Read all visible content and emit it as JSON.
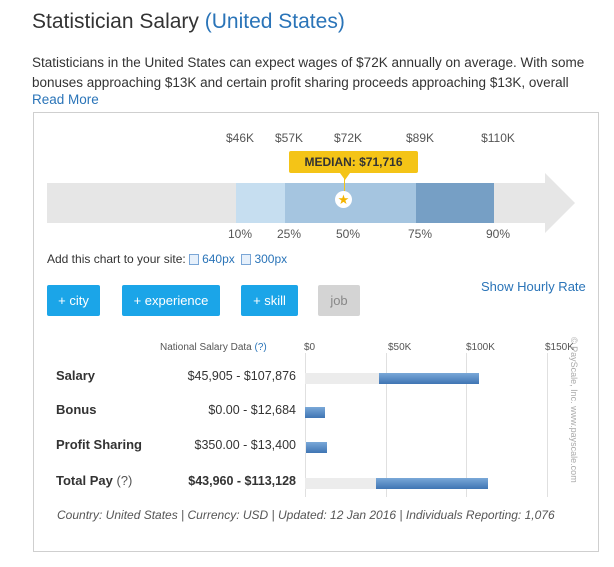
{
  "header": {
    "title": "Statistician Salary",
    "location": "(United States)"
  },
  "description": "Statisticians in the United States can expect wages of $72K annually on average. With some bonuses approaching $13K and certain profit sharing proceeds approaching $13K, overall",
  "read_more": "Read More",
  "chart_data": {
    "type": "bar",
    "title": "Statistician Salary (United States)",
    "percentiles": [
      "10%",
      "25%",
      "50%",
      "75%",
      "90%"
    ],
    "salaries": [
      "$46K",
      "$57K",
      "$72K",
      "$89K",
      "$110K"
    ],
    "values_k": [
      46,
      57,
      72,
      89,
      110
    ],
    "median_label": "MEDIAN: $71,716",
    "median_value": 71716
  },
  "embed": {
    "label": "Add this chart to your site:",
    "option1": "640px",
    "option2": "300px"
  },
  "show_hourly": "Show Hourly Rate",
  "filters": {
    "city": "+ city",
    "experience": "+ experience",
    "skill": "+ skill",
    "job": "job"
  },
  "table": {
    "header": "National Salary Data",
    "help": "(?)",
    "axis": [
      "$0",
      "$50K",
      "$100K",
      "$150K"
    ],
    "axis_max": 150000,
    "rows": [
      {
        "label": "Salary",
        "help": "",
        "range": "$45,905 - $107,876",
        "min": 45905,
        "max": 107876
      },
      {
        "label": "Bonus",
        "help": "",
        "range": "$0.00 - $12,684",
        "min": 0,
        "max": 12684
      },
      {
        "label": "Profit Sharing",
        "help": "",
        "range": "$350.00 - $13,400",
        "min": 350,
        "max": 13400
      },
      {
        "label": "Total Pay",
        "help": "(?)",
        "range": "$43,960 - $113,128",
        "min": 43960,
        "max": 113128
      }
    ]
  },
  "footer": "Country: United States | Currency: USD | Updated: 12 Jan 2016 | Individuals Reporting: 1,076",
  "watermark": "© PayScale, Inc. www.payscale.com",
  "colors": {
    "accent": "#2a74b8",
    "button": "#1ba5e8",
    "median": "#f4c417",
    "band_light": "#c6def0",
    "band_mid": "#a5c5e0",
    "band_dark": "#769fc5"
  }
}
